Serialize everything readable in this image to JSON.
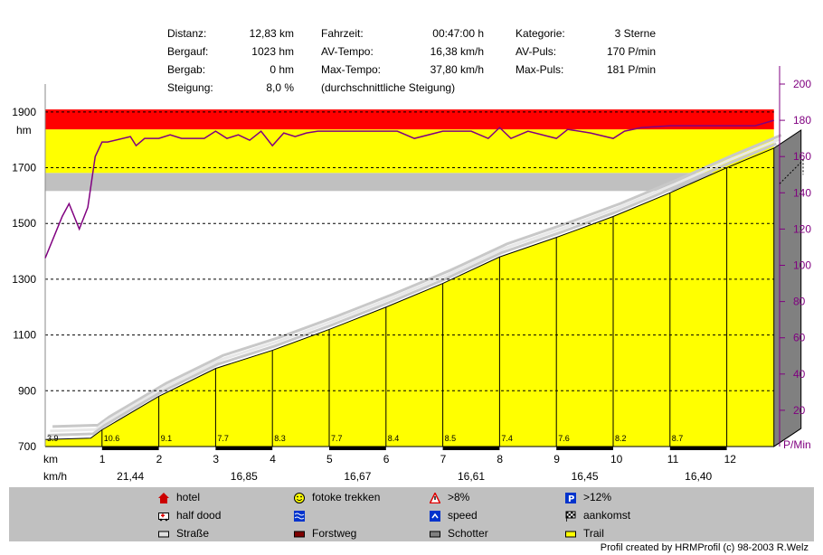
{
  "stats": [
    {
      "label": "Distanz:",
      "value": "12,83 km"
    },
    {
      "label": "Bergauf:",
      "value": "1023 hm"
    },
    {
      "label": "Bergab:",
      "value": "0 hm"
    },
    {
      "label": "Steigung:",
      "value": "8,0 %"
    },
    {
      "label": "Fahrzeit:",
      "value": "00:47:00 h"
    },
    {
      "label": "AV-Tempo:",
      "value": "16,38 km/h"
    },
    {
      "label": "Max-Tempo:",
      "value": "37,80 km/h"
    },
    {
      "label": "Kategorie:",
      "value": "3 Sterne"
    },
    {
      "label": "AV-Puls:",
      "value": "170 P/min"
    },
    {
      "label": "Max-Puls:",
      "value": "181 P/min"
    }
  ],
  "steigung_note": "(durchschnittliche Steigung)",
  "chart_data": {
    "type": "area",
    "x_unit": "km",
    "y_left_unit": "hm",
    "y_right_unit": "P/Min",
    "xlim": [
      0,
      12.83
    ],
    "y_left_lim": [
      700,
      2000
    ],
    "y_right_lim": [
      0,
      200
    ],
    "x_ticks": [
      "1",
      "2",
      "3",
      "4",
      "5",
      "6",
      "7",
      "8",
      "9",
      "10",
      "11",
      "12"
    ],
    "y_left_ticks": [
      "700",
      "900",
      "1100",
      "1300",
      "1500",
      "1700",
      "1900"
    ],
    "y_right_ticks": [
      "20",
      "40",
      "60",
      "80",
      "100",
      "120",
      "140",
      "160",
      "180",
      "200"
    ],
    "hr_zones": [
      {
        "from": 141,
        "to": 151,
        "color": "#c0c0c0"
      },
      {
        "from": 151,
        "to": 175,
        "color": "#ffff00"
      },
      {
        "from": 175,
        "to": 186,
        "color": "#ff0000"
      }
    ],
    "elevation": {
      "x": [
        0,
        0.8,
        1,
        2,
        3,
        4,
        5,
        6,
        7,
        8,
        9,
        10,
        11,
        12,
        12.83
      ],
      "y": [
        725,
        730,
        760,
        880,
        980,
        1045,
        1120,
        1200,
        1285,
        1380,
        1450,
        1525,
        1610,
        1700,
        1770
      ]
    },
    "gradients": [
      {
        "km": 0,
        "label": "3.9"
      },
      {
        "km": 1,
        "label": "10.6"
      },
      {
        "km": 2,
        "label": "9.1"
      },
      {
        "km": 3,
        "label": "7.7"
      },
      {
        "km": 4,
        "label": "8.3"
      },
      {
        "km": 5,
        "label": "7.7"
      },
      {
        "km": 6,
        "label": "8.4"
      },
      {
        "km": 7,
        "label": "8.5"
      },
      {
        "km": 8,
        "label": "7.4"
      },
      {
        "km": 9,
        "label": "7.6"
      },
      {
        "km": 10,
        "label": "8.2"
      },
      {
        "km": 11,
        "label": "8.7"
      }
    ],
    "speeds": [
      {
        "km": 1.5,
        "label": "21,44"
      },
      {
        "km": 3.5,
        "label": "16,85"
      },
      {
        "km": 5.5,
        "label": "16,67"
      },
      {
        "km": 7.5,
        "label": "16,61"
      },
      {
        "km": 9.5,
        "label": "16,45"
      },
      {
        "km": 11.5,
        "label": "16,40"
      }
    ],
    "heart_rate": {
      "x": [
        0,
        0.3,
        0.42,
        0.6,
        0.75,
        0.88,
        1.0,
        1.1,
        1.5,
        1.6,
        1.75,
        2.0,
        2.2,
        2.4,
        2.8,
        3.0,
        3.2,
        3.4,
        3.6,
        3.8,
        4.0,
        4.2,
        4.4,
        4.6,
        4.8,
        5.0,
        5.4,
        5.8,
        6.2,
        6.5,
        7.0,
        7.5,
        7.8,
        8.0,
        8.2,
        8.5,
        9.0,
        9.2,
        9.6,
        10.0,
        10.2,
        10.5,
        11.0,
        11.5,
        12.0,
        12.5,
        12.83
      ],
      "y": [
        104,
        127,
        134,
        120,
        132,
        160,
        168,
        168,
        171,
        166,
        170,
        170,
        172,
        170,
        170,
        174,
        170,
        172,
        169,
        174,
        166,
        173,
        171,
        173,
        174,
        174,
        174,
        174,
        174,
        170,
        174,
        174,
        170,
        176,
        170,
        174,
        170,
        175,
        173,
        170,
        174,
        176,
        177,
        177,
        177,
        177,
        180
      ]
    }
  },
  "x_axis_label": "km",
  "speed_axis_label": "km/h",
  "legend": [
    {
      "icon": "hotel-icon",
      "label": "hotel"
    },
    {
      "icon": "smiley-icon",
      "label": "fotoke trekken"
    },
    {
      "icon": "warning-triangle-icon",
      "label": ">8%"
    },
    {
      "icon": "parking-icon",
      "label": ">12%"
    },
    {
      "icon": "ambulance-icon",
      "label": "half dood"
    },
    {
      "icon": "water-icon",
      "label": ""
    },
    {
      "icon": "speed-icon",
      "label": "speed"
    },
    {
      "icon": "checkered-flag-icon",
      "label": "aankomst"
    },
    {
      "icon": "road-icon",
      "label": "Straße"
    },
    {
      "icon": "forest-road-icon",
      "label": "Forstweg"
    },
    {
      "icon": "gravel-icon",
      "label": "Schotter"
    },
    {
      "icon": "trail-icon",
      "label": "Trail"
    }
  ],
  "credit": "Profil created by HRMProfil (c) 98-2003 R.Welz",
  "colors": {
    "elevation_fill": "#ffff00",
    "hr_line": "#800080",
    "surface_bar": "#000000",
    "shadow": "#808080",
    "grid": "#000000"
  }
}
